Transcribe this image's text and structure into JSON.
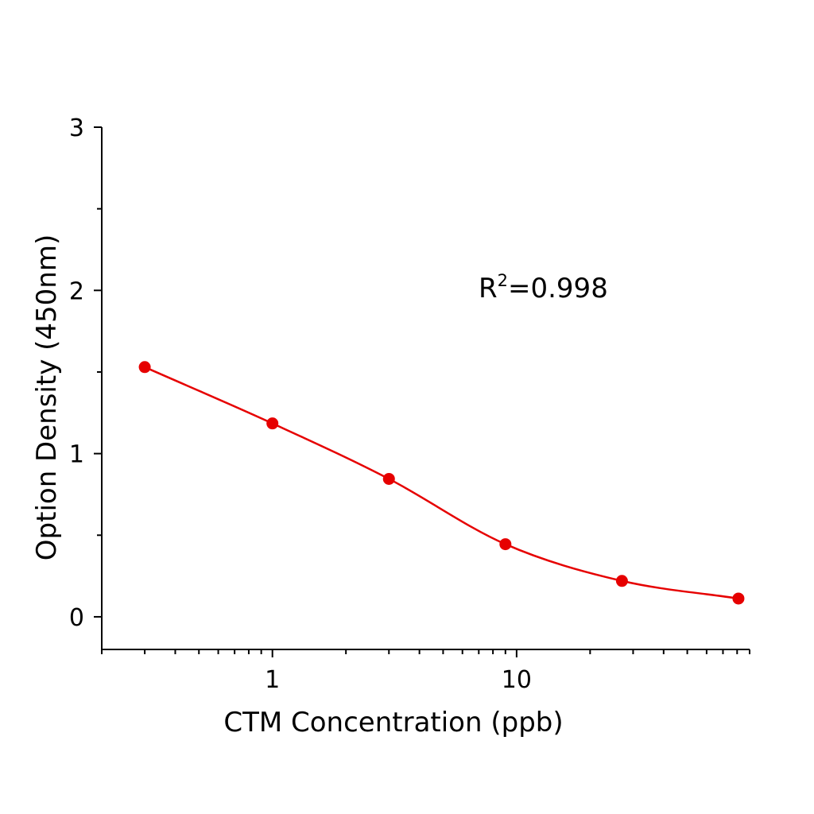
{
  "chart_data": {
    "type": "scatter",
    "title": "",
    "xlabel": "CTM Concentration (ppb)",
    "ylabel": "Option Density (450nm)",
    "x_scale": "log",
    "xlim": [
      0.2,
      90
    ],
    "ylim": [
      -0.2,
      3
    ],
    "x_ticks": [
      1,
      10
    ],
    "x_tick_labels": [
      "1",
      "10"
    ],
    "y_ticks": [
      0,
      1,
      2,
      3
    ],
    "y_tick_labels": [
      "0",
      "1",
      "2",
      "3"
    ],
    "grid": false,
    "x": [
      0.3,
      1,
      3,
      9,
      27,
      81
    ],
    "y": [
      1.53,
      1.185,
      0.845,
      0.445,
      0.22,
      0.112
    ],
    "fit": "four-parameter logistic curve",
    "annotation": {
      "base": "R",
      "sup": "2",
      "rest": "=0.998"
    },
    "color": "#e60000"
  }
}
